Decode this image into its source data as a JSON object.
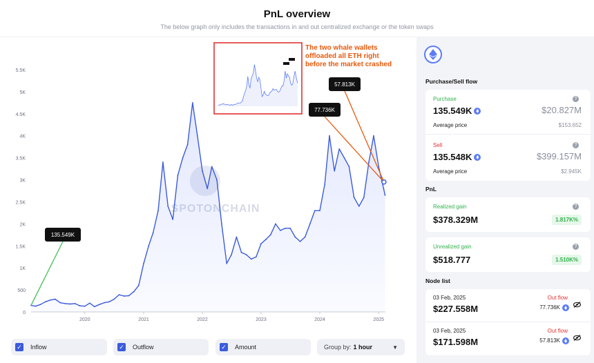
{
  "header": {
    "title": "PnL overview",
    "subtitle": "The below graph only includes the transactions in and out centralized exchange or the token swaps"
  },
  "chart_data": {
    "type": "area",
    "title": "",
    "xlabel": "",
    "ylabel": "",
    "ylim": [
      0,
      5500
    ],
    "y_ticks": [
      "0",
      "500",
      "1K",
      "1.5K",
      "2K",
      "2.5K",
      "3K",
      "3.5K",
      "4K",
      "4.5K",
      "5K",
      "5.5K"
    ],
    "x_ticks": [
      "2020",
      "2021",
      "2022",
      "2023",
      "2024",
      "2025"
    ],
    "series": [
      {
        "color": "#3b5bdb",
        "points": [
          [
            "2019-02-01",
            150
          ],
          [
            "2019-03-01",
            130
          ],
          [
            "2019-04-01",
            170
          ],
          [
            "2019-05-01",
            230
          ],
          [
            "2019-06-01",
            270
          ],
          [
            "2019-07-01",
            290
          ],
          [
            "2019-08-01",
            210
          ],
          [
            "2019-09-01",
            190
          ],
          [
            "2019-10-01",
            180
          ],
          [
            "2019-11-01",
            190
          ],
          [
            "2019-12-01",
            140
          ],
          [
            "2020-01-01",
            130
          ],
          [
            "2020-02-01",
            200
          ],
          [
            "2020-03-01",
            120
          ],
          [
            "2020-04-01",
            170
          ],
          [
            "2020-05-01",
            210
          ],
          [
            "2020-06-01",
            230
          ],
          [
            "2020-07-01",
            290
          ],
          [
            "2020-08-01",
            390
          ],
          [
            "2020-09-01",
            360
          ],
          [
            "2020-10-01",
            370
          ],
          [
            "2020-11-01",
            460
          ],
          [
            "2020-12-01",
            600
          ],
          [
            "2021-01-01",
            1100
          ],
          [
            "2021-02-01",
            1500
          ],
          [
            "2021-03-01",
            1800
          ],
          [
            "2021-04-01",
            2300
          ],
          [
            "2021-05-01",
            3400
          ],
          [
            "2021-06-01",
            2400
          ],
          [
            "2021-07-01",
            2100
          ],
          [
            "2021-08-01",
            3100
          ],
          [
            "2021-09-01",
            3500
          ],
          [
            "2021-10-01",
            3800
          ],
          [
            "2021-11-01",
            4750
          ],
          [
            "2021-12-01",
            4000
          ],
          [
            "2022-01-01",
            3200
          ],
          [
            "2022-02-01",
            2800
          ],
          [
            "2022-03-01",
            3300
          ],
          [
            "2022-04-01",
            3000
          ],
          [
            "2022-05-01",
            2000
          ],
          [
            "2022-06-01",
            1100
          ],
          [
            "2022-07-01",
            1300
          ],
          [
            "2022-08-01",
            1700
          ],
          [
            "2022-09-01",
            1350
          ],
          [
            "2022-10-01",
            1300
          ],
          [
            "2022-11-01",
            1200
          ],
          [
            "2022-12-01",
            1250
          ],
          [
            "2023-01-01",
            1550
          ],
          [
            "2023-02-01",
            1650
          ],
          [
            "2023-03-01",
            1750
          ],
          [
            "2023-04-01",
            2000
          ],
          [
            "2023-05-01",
            1850
          ],
          [
            "2023-06-01",
            1900
          ],
          [
            "2023-07-01",
            1900
          ],
          [
            "2023-08-01",
            1700
          ],
          [
            "2023-09-01",
            1600
          ],
          [
            "2023-10-01",
            1700
          ],
          [
            "2023-11-01",
            2000
          ],
          [
            "2023-12-01",
            2300
          ],
          [
            "2024-01-01",
            2300
          ],
          [
            "2024-02-01",
            2900
          ],
          [
            "2024-03-01",
            4000
          ],
          [
            "2024-04-01",
            3200
          ],
          [
            "2024-05-01",
            3700
          ],
          [
            "2024-06-01",
            3500
          ],
          [
            "2024-07-01",
            3300
          ],
          [
            "2024-08-01",
            2600
          ],
          [
            "2024-09-01",
            2400
          ],
          [
            "2024-10-01",
            2600
          ],
          [
            "2024-11-01",
            3400
          ],
          [
            "2024-12-01",
            4000
          ],
          [
            "2025-01-01",
            3300
          ],
          [
            "2025-02-01",
            2800
          ],
          [
            "2025-02-10",
            2650
          ]
        ]
      }
    ],
    "annotations": [
      {
        "label": "135.549K",
        "date": "2019-02-01",
        "value": 150,
        "color": "#40c057"
      },
      {
        "label": "77.736K",
        "date": "2025-02-03",
        "value": 2950,
        "color": "#e8590c"
      },
      {
        "label": "57.813K",
        "date": "2025-02-03",
        "value": 2950,
        "color": "#e8590c"
      }
    ],
    "callout": "The two whale wallets offloaded all ETH right before the market crashed",
    "watermark": "SPOTONCHAIN"
  },
  "filters": {
    "inflow": "Inflow",
    "outflow": "Outflow",
    "amount": "Amount",
    "group_label": "Group by:",
    "group_value": "1 hour"
  },
  "sidebar": {
    "flow_title": "Purchase/Sell flow",
    "purchase": {
      "label": "Purchase",
      "amount": "135.549K",
      "usd": "$20.827M",
      "avg_label": "Average price",
      "avg": "$153.652"
    },
    "sell": {
      "label": "Sell",
      "amount": "135.548K",
      "usd": "$399.157M",
      "avg_label": "Average price",
      "avg": "$2.945K"
    },
    "pnl_title": "PnL",
    "realized": {
      "label": "Realized gain",
      "value": "$378.329M",
      "pct": "1.817K%"
    },
    "unrealized": {
      "label": "Unrealized gain",
      "value": "$518.777",
      "pct": "1.510K%"
    },
    "node_title": "Node list",
    "nodes": [
      {
        "date": "03 Feb, 2025",
        "direction": "Out flow",
        "usd": "$227.558M",
        "amount": "77.736K"
      },
      {
        "date": "03 Feb, 2025",
        "direction": "Out flow",
        "usd": "$171.598M",
        "amount": "57.813K"
      }
    ],
    "colors": {
      "accent": "#5c7cfa",
      "green": "#2fb34a",
      "red": "#e03131"
    }
  }
}
